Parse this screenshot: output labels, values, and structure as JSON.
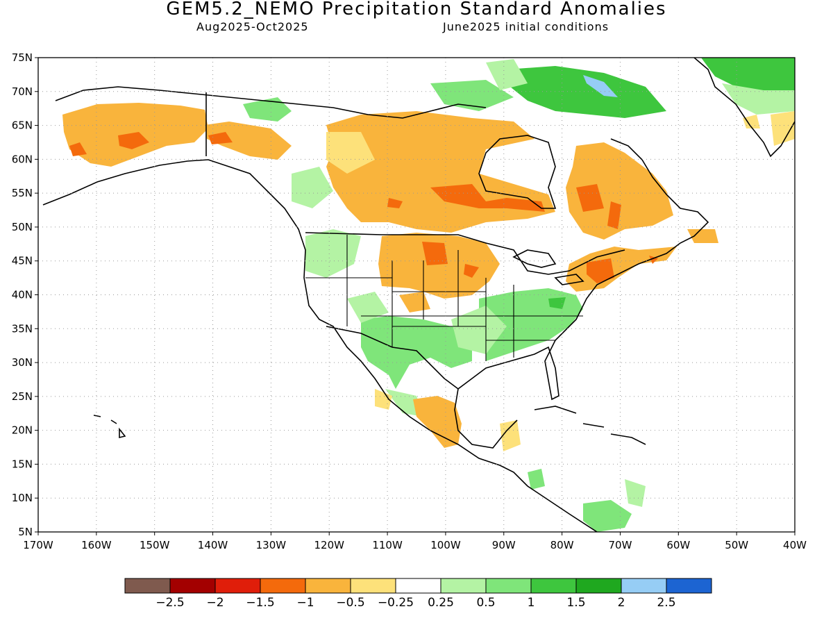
{
  "header": {
    "title": "GEM5.2_NEMO Precipitation Standard Anomalies",
    "period": "Aug2025-Oct2025",
    "init": "June2025 initial conditions"
  },
  "map": {
    "lat_labels": [
      "75N",
      "70N",
      "65N",
      "60N",
      "55N",
      "50N",
      "45N",
      "40N",
      "35N",
      "30N",
      "25N",
      "20N",
      "15N",
      "10N",
      "5N"
    ],
    "lon_labels": [
      "170W",
      "160W",
      "150W",
      "140W",
      "130W",
      "120W",
      "110W",
      "100W",
      "90W",
      "80W",
      "70W",
      "60W",
      "50W",
      "40W"
    ],
    "lon_range": [
      -170,
      -40
    ],
    "lat_range": [
      5,
      75
    ]
  },
  "colorbar": {
    "colors": [
      "#7f5a4e",
      "#a30000",
      "#e01e0a",
      "#f46a0c",
      "#f9b43c",
      "#fde17a",
      "#ffffff",
      "#b4f3a4",
      "#7fe57a",
      "#3ec63e",
      "#1fa81f",
      "#96cdf5",
      "#1c64d2"
    ],
    "labels": [
      "-2.5",
      "-2",
      "-1.5",
      "-1",
      "-0.5",
      "-0.25",
      "0.25",
      "0.5",
      "1",
      "1.5",
      "2",
      "2.5"
    ]
  },
  "anomalies": [
    {
      "name": "alaska-dry",
      "level": "-0.5",
      "color": "#f9b43c"
    },
    {
      "name": "yukon-dry",
      "level": "-1",
      "color": "#f46a0c"
    },
    {
      "name": "canada-central-dry",
      "level": "-0.5",
      "color": "#f9b43c"
    },
    {
      "name": "hudson-west-dry",
      "level": "-1",
      "color": "#f46a0c"
    },
    {
      "name": "quebec-dry",
      "level": "-1",
      "color": "#f46a0c"
    },
    {
      "name": "plains-dry",
      "level": "-1",
      "color": "#f46a0c"
    },
    {
      "name": "northeast-dry",
      "level": "-1",
      "color": "#f46a0c"
    },
    {
      "name": "southwest-wet",
      "level": "0.5",
      "color": "#7fe57a"
    },
    {
      "name": "southeast-wet",
      "level": "0.5",
      "color": "#7fe57a"
    },
    {
      "name": "arctic-wet",
      "level": "1",
      "color": "#3ec63e"
    },
    {
      "name": "greenland-wet",
      "level": "1",
      "color": "#3ec63e"
    },
    {
      "name": "mexico-dry",
      "level": "-0.5",
      "color": "#f9b43c"
    },
    {
      "name": "central-america-wet",
      "level": "0.5",
      "color": "#7fe57a"
    }
  ]
}
